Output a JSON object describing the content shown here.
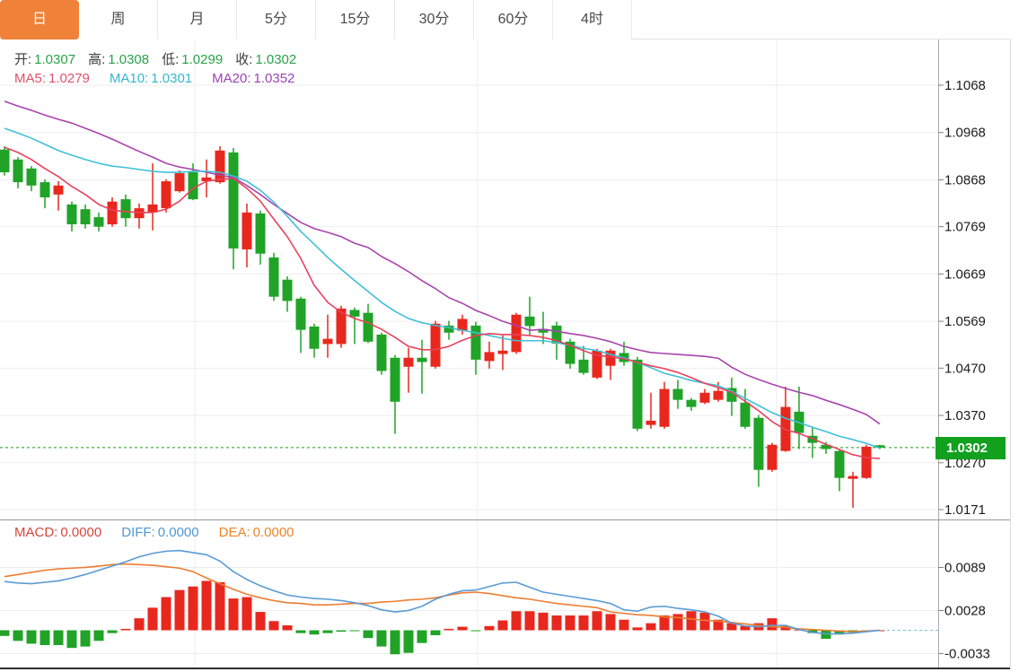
{
  "tabbar": {
    "tabs": [
      {
        "label": "日",
        "selected": true
      },
      {
        "label": "周",
        "selected": false
      },
      {
        "label": "月",
        "selected": false
      },
      {
        "label": "5分",
        "selected": false
      },
      {
        "label": "15分",
        "selected": false
      },
      {
        "label": "30分",
        "selected": false
      },
      {
        "label": "60分",
        "selected": false
      },
      {
        "label": "4时",
        "selected": false
      }
    ],
    "selected_color": "#ef8139"
  },
  "ohlc_legend": {
    "label_color": "#3c3c3c",
    "value_color": "#27a348",
    "items": [
      {
        "label": "开:",
        "value": "1.0307"
      },
      {
        "label": "高:",
        "value": "1.0308"
      },
      {
        "label": "低:",
        "value": "1.0299"
      },
      {
        "label": "收:",
        "value": "1.0302"
      }
    ]
  },
  "ma_legend": {
    "items": [
      {
        "label": "MA5:",
        "value": "1.0279",
        "color": "#e0506c"
      },
      {
        "label": "MA10:",
        "value": "1.0301",
        "color": "#36b6ce"
      },
      {
        "label": "MA20:",
        "value": "1.0352",
        "color": "#9b44b5"
      }
    ]
  },
  "macd_legend": {
    "items": [
      {
        "label": "MACD:",
        "value": "0.0000",
        "color": "#d8453a"
      },
      {
        "label": "DIFF:",
        "value": "0.0000",
        "color": "#4f97d5"
      },
      {
        "label": "DEA:",
        "value": "0.0000",
        "color": "#ee8426"
      }
    ]
  },
  "price_axis": {
    "ticks": [
      "1.1068",
      "1.0968",
      "1.0868",
      "1.0769",
      "1.0669",
      "1.0569",
      "1.0470",
      "1.0370",
      "1.0270",
      "1.0171"
    ],
    "current_price": "1.0302",
    "badge_color": "#11a11f"
  },
  "macd_axis": {
    "ticks": [
      "0.0089",
      "0.0028",
      "-0.0033"
    ]
  },
  "chart_data": {
    "type": "candlestick",
    "title": "",
    "legend_position": "top-left",
    "grid": true,
    "price_panel": {
      "ylim": [
        1.0171,
        1.1068
      ],
      "tick_values": [
        1.1068,
        1.0968,
        1.0868,
        1.0769,
        1.0669,
        1.0569,
        1.047,
        1.037,
        1.027,
        1.0171
      ],
      "current_price": 1.0302,
      "ohlc": {
        "open": 1.0307,
        "high": 1.0308,
        "low": 1.0299,
        "close": 1.0302
      },
      "candles_ohlc": [
        [
          1.0932,
          1.0939,
          1.0877,
          1.0884
        ],
        [
          1.0911,
          1.0916,
          1.085,
          1.0863
        ],
        [
          1.0892,
          1.0897,
          1.0844,
          1.0856
        ],
        [
          1.0863,
          1.0869,
          1.0808,
          1.0831
        ],
        [
          1.0837,
          1.0865,
          1.0803,
          1.0856
        ],
        [
          1.0816,
          1.0822,
          1.0759,
          1.0774
        ],
        [
          1.0806,
          1.0816,
          1.0765,
          1.0774
        ],
        [
          1.0789,
          1.0799,
          1.0759,
          1.0769
        ],
        [
          1.0774,
          1.0831,
          1.0769,
          1.0822
        ],
        [
          1.0827,
          1.0837,
          1.0769,
          1.0787
        ],
        [
          1.0787,
          1.0818,
          1.0765,
          1.0808
        ],
        [
          1.0799,
          1.0903,
          1.0761,
          1.0816
        ],
        [
          1.0808,
          1.0869,
          1.0799,
          1.0865
        ],
        [
          1.0844,
          1.0888,
          1.0841,
          1.0882
        ],
        [
          1.0884,
          1.0903,
          1.0825,
          1.0827
        ],
        [
          1.0865,
          1.0911,
          1.0831,
          1.0873
        ],
        [
          1.0863,
          1.0939,
          1.086,
          1.093
        ],
        [
          1.0926,
          1.0935,
          1.0679,
          1.0723
        ],
        [
          1.0721,
          1.0818,
          1.0683,
          1.0799
        ],
        [
          1.0797,
          1.0803,
          1.0689,
          1.0712
        ],
        [
          1.0704,
          1.0714,
          1.0612,
          1.0621
        ],
        [
          1.0657,
          1.0664,
          1.0589,
          1.0612
        ],
        [
          1.0617,
          1.0621,
          1.0502,
          1.0551
        ],
        [
          1.0558,
          1.0564,
          1.0492,
          1.0511
        ],
        [
          1.0521,
          1.0583,
          1.0492,
          1.0532
        ],
        [
          1.0521,
          1.0602,
          1.0513,
          1.0596
        ],
        [
          1.0593,
          1.0598,
          1.0521,
          1.0579
        ],
        [
          1.0587,
          1.0606,
          1.0523,
          1.0526
        ],
        [
          1.0541,
          1.0545,
          1.0456,
          1.0464
        ],
        [
          1.0492,
          1.0498,
          1.0331,
          1.0399
        ],
        [
          1.0473,
          1.0513,
          1.0418,
          1.0492
        ],
        [
          1.0492,
          1.053,
          1.0416,
          1.0483
        ],
        [
          1.0473,
          1.057,
          1.0469,
          1.0564
        ],
        [
          1.056,
          1.057,
          1.053,
          1.0545
        ],
        [
          1.0549,
          1.0583,
          1.0541,
          1.0574
        ],
        [
          1.056,
          1.0568,
          1.0456,
          1.0488
        ],
        [
          1.0485,
          1.0526,
          1.0469,
          1.0504
        ],
        [
          1.05,
          1.0539,
          1.0466,
          1.0507
        ],
        [
          1.0504,
          1.0587,
          1.05,
          1.0583
        ],
        [
          1.0579,
          1.0621,
          1.0539,
          1.0559
        ],
        [
          1.0553,
          1.0589,
          1.0521,
          1.0545
        ],
        [
          1.056,
          1.0568,
          1.0488,
          1.0522
        ],
        [
          1.0526,
          1.0532,
          1.0469,
          1.0479
        ],
        [
          1.0488,
          1.0517,
          1.0456,
          1.046
        ],
        [
          1.045,
          1.0511,
          1.0447,
          1.0507
        ],
        [
          1.0475,
          1.0511,
          1.0445,
          1.0507
        ],
        [
          1.0502,
          1.0526,
          1.0475,
          1.0483
        ],
        [
          1.0488,
          1.0494,
          1.0337,
          1.0342
        ],
        [
          1.035,
          1.0418,
          1.0342,
          1.0359
        ],
        [
          1.0346,
          1.0441,
          1.0342,
          1.0426
        ],
        [
          1.0426,
          1.0445,
          1.0384,
          1.0403
        ],
        [
          1.0403,
          1.0407,
          1.038,
          1.0388
        ],
        [
          1.0397,
          1.0426,
          1.0394,
          1.0418
        ],
        [
          1.0403,
          1.0441,
          1.0399,
          1.0422
        ],
        [
          1.0428,
          1.045,
          1.0369,
          1.0399
        ],
        [
          1.0397,
          1.0426,
          1.0342,
          1.0346
        ],
        [
          1.0365,
          1.0371,
          1.0219,
          1.0255
        ],
        [
          1.0255,
          1.0312,
          1.0251,
          1.0308
        ],
        [
          1.0295,
          1.0431,
          1.0293,
          1.0388
        ],
        [
          1.0378,
          1.0431,
          1.0299,
          1.0333
        ],
        [
          1.0327,
          1.0346,
          1.028,
          1.0312
        ],
        [
          1.0308,
          1.0314,
          1.0289,
          1.0299
        ],
        [
          1.0295,
          1.0299,
          1.021,
          1.0238
        ],
        [
          1.0236,
          1.0251,
          1.0175,
          1.0242
        ],
        [
          1.0238,
          1.0308,
          1.0236,
          1.0304
        ],
        [
          1.0307,
          1.0308,
          1.0299,
          1.0302
        ]
      ],
      "ma5": [
        1.0937,
        1.0926,
        1.0911,
        1.0892,
        1.0875,
        1.0854,
        1.0837,
        1.0816,
        1.0804,
        1.0801,
        1.0799,
        1.0799,
        1.0806,
        1.0823,
        1.085,
        1.0865,
        1.0869,
        1.0871,
        1.085,
        1.0823,
        1.0785,
        1.0748,
        1.0702,
        1.0645,
        1.0609,
        1.0588,
        1.0575,
        1.0566,
        1.0552,
        1.0535,
        1.0516,
        1.0509,
        1.0509,
        1.0516,
        1.0529,
        1.0539,
        1.0543,
        1.0541,
        1.0541,
        1.0539,
        1.0535,
        1.0528,
        1.0518,
        1.0507,
        1.0497,
        1.0494,
        1.049,
        1.0482,
        1.0475,
        1.0469,
        1.0461,
        1.045,
        1.0438,
        1.0429,
        1.0419,
        1.04,
        1.038,
        1.0357,
        1.034,
        1.0332,
        1.0321,
        1.0309,
        1.0298,
        1.0287,
        1.0281,
        1.0279
      ],
      "ma10": [
        1.0977,
        1.0967,
        1.0956,
        1.0943,
        1.093,
        1.092,
        1.0911,
        1.0903,
        1.0897,
        1.0894,
        1.089,
        1.0886,
        1.0884,
        1.0884,
        1.0886,
        1.0886,
        1.0884,
        1.0876,
        1.0865,
        1.0846,
        1.0821,
        1.0791,
        1.0759,
        1.0732,
        1.0704,
        1.0679,
        1.0655,
        1.0632,
        1.0609,
        1.059,
        1.0575,
        1.0566,
        1.056,
        1.0556,
        1.055,
        1.0545,
        1.0539,
        1.0533,
        1.0528,
        1.0528,
        1.0528,
        1.0524,
        1.0518,
        1.0512,
        1.0507,
        1.0499,
        1.0492,
        1.0482,
        1.0471,
        1.0459,
        1.0452,
        1.0444,
        1.0438,
        1.0433,
        1.0421,
        1.0406,
        1.0391,
        1.0376,
        1.0364,
        1.0355,
        1.0345,
        1.0336,
        1.0326,
        1.0319,
        1.0311,
        1.0301
      ],
      "ma20": [
        1.1034,
        1.1024,
        1.1015,
        1.1005,
        1.0996,
        1.0988,
        1.0977,
        1.0966,
        1.0954,
        1.0941,
        1.0928,
        1.0916,
        1.0903,
        1.0895,
        1.089,
        1.0884,
        1.0878,
        1.0873,
        1.0856,
        1.0837,
        1.0816,
        1.0797,
        1.0778,
        1.0765,
        1.0757,
        1.0748,
        1.0734,
        1.0725,
        1.0706,
        1.0691,
        1.0674,
        1.0655,
        1.0638,
        1.0619,
        1.0607,
        1.0592,
        1.0581,
        1.0569,
        1.056,
        1.055,
        1.0552,
        1.0548,
        1.0543,
        1.0539,
        1.0533,
        1.0526,
        1.0516,
        1.0509,
        1.0503,
        1.0501,
        1.0499,
        1.0497,
        1.0495,
        1.0491,
        1.0472,
        1.0457,
        1.0446,
        1.0436,
        1.0427,
        1.0419,
        1.0412,
        1.0402,
        1.0393,
        1.0383,
        1.0372,
        1.0352
      ]
    },
    "macd_panel": {
      "tick_values": [
        0.0089,
        0.0028,
        -0.0033
      ],
      "macd": 0.0,
      "diff_last": 0.0,
      "dea_last": 0.0,
      "histogram": [
        -0.0008,
        -0.0015,
        -0.0019,
        -0.0021,
        -0.0021,
        -0.0025,
        -0.0023,
        -0.0015,
        -0.0004,
        0.0002,
        0.0017,
        0.0032,
        0.0047,
        0.0057,
        0.0062,
        0.007,
        0.0068,
        0.0045,
        0.0047,
        0.0026,
        0.0013,
        0.0007,
        -0.0004,
        -0.0006,
        -0.0004,
        -0.0002,
        -0.0001,
        -0.0011,
        -0.0023,
        -0.0034,
        -0.0032,
        -0.0018,
        -0.0007,
        0.0002,
        0.0005,
        -0.0001,
        0.0006,
        0.0014,
        0.0027,
        0.0027,
        0.0025,
        0.0021,
        0.0021,
        0.0021,
        0.0027,
        0.0023,
        0.0015,
        0.0004,
        0.001,
        0.0021,
        0.0023,
        0.0027,
        0.0025,
        0.0015,
        0.001,
        0.0006,
        0.001,
        0.0017,
        0.0006,
        0.0001,
        -0.0004,
        -0.0012,
        -0.0006,
        -0.0003,
        -0.0001,
        0.0
      ],
      "diff": [
        0.0069,
        0.0067,
        0.0066,
        0.0068,
        0.007,
        0.0074,
        0.0079,
        0.0085,
        0.0091,
        0.0097,
        0.0104,
        0.0109,
        0.0112,
        0.0113,
        0.011,
        0.0107,
        0.0098,
        0.0083,
        0.0072,
        0.0063,
        0.0056,
        0.005,
        0.0047,
        0.0045,
        0.0044,
        0.0042,
        0.0039,
        0.0035,
        0.0029,
        0.0026,
        0.0028,
        0.0034,
        0.0044,
        0.0051,
        0.0056,
        0.0057,
        0.0062,
        0.0067,
        0.0068,
        0.0061,
        0.0054,
        0.0051,
        0.0048,
        0.0045,
        0.0042,
        0.0038,
        0.0029,
        0.0027,
        0.0033,
        0.0034,
        0.0031,
        0.0029,
        0.0026,
        0.002,
        0.001,
        0.0006,
        0.0005,
        0.0007,
        0.0007,
        0.0001,
        -0.0003,
        -0.0005,
        -0.0005,
        -0.0004,
        -0.0002,
        0.0
      ],
      "dea": [
        0.0076,
        0.0079,
        0.0082,
        0.0085,
        0.0087,
        0.0088,
        0.0089,
        0.0091,
        0.0093,
        0.0094,
        0.0093,
        0.0092,
        0.009,
        0.0088,
        0.0083,
        0.0074,
        0.0066,
        0.0058,
        0.0051,
        0.0046,
        0.0042,
        0.0039,
        0.0038,
        0.0036,
        0.0036,
        0.0037,
        0.0038,
        0.0038,
        0.004,
        0.0041,
        0.0043,
        0.0044,
        0.0046,
        0.005,
        0.0053,
        0.0054,
        0.0052,
        0.0049,
        0.0046,
        0.0044,
        0.0041,
        0.0038,
        0.0036,
        0.0034,
        0.0032,
        0.0026,
        0.0024,
        0.0022,
        0.0021,
        0.0019,
        0.0018,
        0.0016,
        0.0014,
        0.0013,
        0.0011,
        0.0009,
        0.0007,
        0.0005,
        0.0004,
        0.0002,
        0.0001,
        0.0,
        -0.0001,
        -0.0002,
        -0.0001,
        0.0
      ]
    },
    "colors": {
      "up": "#e8281e",
      "down": "#20a327",
      "ma5": "#e8415c",
      "ma10": "#3fc0d8",
      "ma20": "#a844ac",
      "diff": "#5b9bd5",
      "dea": "#ed7d31",
      "current_price_line": "#13a313",
      "grid": "#ededed"
    }
  }
}
